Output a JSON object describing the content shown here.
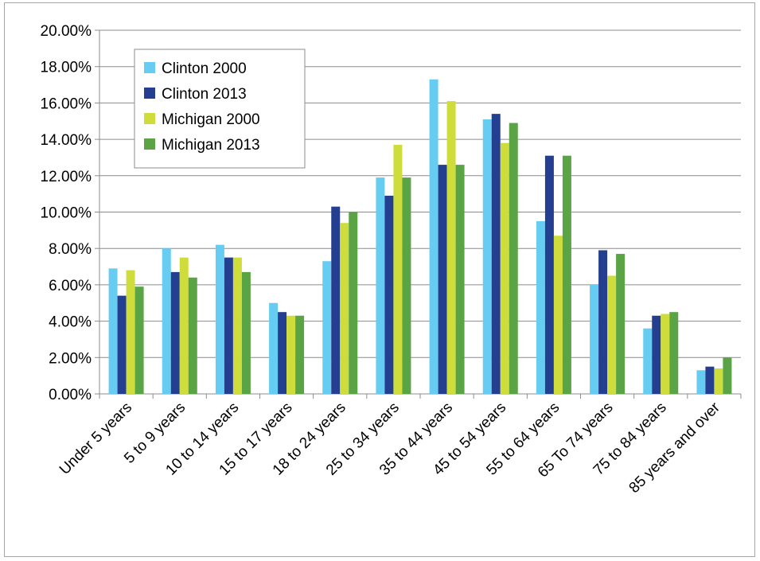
{
  "chart_data": {
    "type": "bar",
    "title": "",
    "xlabel": "",
    "ylabel": "",
    "ylim": [
      0,
      0.2
    ],
    "y_ticks": [
      "0.00%",
      "2.00%",
      "4.00%",
      "6.00%",
      "8.00%",
      "10.00%",
      "12.00%",
      "14.00%",
      "16.00%",
      "18.00%",
      "20.00%"
    ],
    "grid": true,
    "legend_position": "top-left",
    "categories": [
      "Under 5 years",
      "5 to 9 years",
      "10 to 14 years",
      "15 to 17 years",
      "18 to 24 years",
      "25 to 34 years",
      "35 to 44 years",
      "45 to 54 years",
      "55 to 64 years",
      "65 To 74 years",
      "75 to 84 years",
      "85 years and over"
    ],
    "series": [
      {
        "name": "Clinton 2000",
        "color": "#66ccf2",
        "values": [
          0.069,
          0.08,
          0.082,
          0.05,
          0.073,
          0.119,
          0.173,
          0.151,
          0.095,
          0.06,
          0.036,
          0.013
        ]
      },
      {
        "name": "Clinton 2013",
        "color": "#243f8f",
        "values": [
          0.054,
          0.067,
          0.075,
          0.045,
          0.103,
          0.109,
          0.126,
          0.154,
          0.131,
          0.079,
          0.043,
          0.015
        ]
      },
      {
        "name": "Michigan 2000",
        "color": "#cfdd3c",
        "values": [
          0.068,
          0.075,
          0.075,
          0.043,
          0.094,
          0.137,
          0.161,
          0.138,
          0.087,
          0.065,
          0.044,
          0.014
        ]
      },
      {
        "name": "Michigan 2013",
        "color": "#5aa445",
        "values": [
          0.059,
          0.064,
          0.067,
          0.043,
          0.1,
          0.119,
          0.126,
          0.149,
          0.131,
          0.077,
          0.045,
          0.02
        ]
      }
    ]
  }
}
